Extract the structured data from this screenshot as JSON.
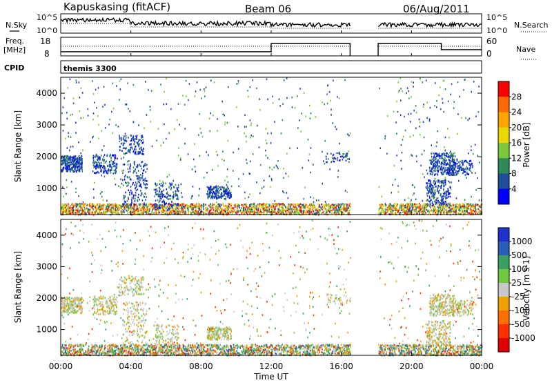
{
  "header": {
    "station": "Kapuskasing (fitACF)",
    "beam": "Beam 06",
    "date": "06/Aug/2011"
  },
  "noise_panel": {
    "left_label": "N.Sky",
    "right_label": "N.Search",
    "left_ticks": [
      "10^5",
      "10^0"
    ],
    "right_ticks": [
      "10^5",
      "10^0"
    ]
  },
  "freq_panel": {
    "left_label_1": "Freq.",
    "left_label_2": "[MHz]",
    "right_label": "Nave",
    "left_ticks": [
      "18",
      "8"
    ],
    "right_ticks": [
      "60",
      "0"
    ]
  },
  "cpid": {
    "label": "CPID",
    "value": "themis 3300"
  },
  "chart_data": [
    {
      "type": "heatmap",
      "name": "Power",
      "ylabel": "Slant Range [km]",
      "ylim": [
        180,
        4500
      ],
      "xlim": [
        0,
        24
      ],
      "yticks": [
        "1000",
        "2000",
        "3000",
        "4000"
      ],
      "colorbar_label": "Power [dB]",
      "colorbar_ticks": [
        "28",
        "24",
        "20",
        "16",
        "12",
        "8",
        "4"
      ],
      "colorbar_colors": [
        "#ff0000",
        "#ff6a00",
        "#ffa500",
        "#e8d800",
        "#7cc83c",
        "#2e8b57",
        "#1f4e9c",
        "#0000ff"
      ],
      "data_gap_hours": [
        16.5,
        18.1
      ]
    },
    {
      "type": "heatmap",
      "name": "Velocity",
      "ylabel": "Slant Range [km]",
      "ylim": [
        180,
        4500
      ],
      "xlim": [
        0,
        24
      ],
      "yticks": [
        "1000",
        "2000",
        "3000",
        "4000"
      ],
      "colorbar_label": "Velocity [m s-1]",
      "colorbar_ticks": [
        "1000",
        "500",
        "100",
        "25",
        "-25",
        "-100",
        "-500",
        "-1000"
      ],
      "colorbar_colors": [
        "#2030c8",
        "#2a5cb8",
        "#3aa060",
        "#70c840",
        "#c8c8c8",
        "#f0a000",
        "#ff7000",
        "#ff3000",
        "#e00000"
      ],
      "data_gap_hours": [
        16.5,
        18.1
      ]
    }
  ],
  "xaxis": {
    "label": "Time UT",
    "ticks": [
      "00:00",
      "04:00",
      "08:00",
      "12:00",
      "16:00",
      "20:00",
      "00:00"
    ]
  }
}
